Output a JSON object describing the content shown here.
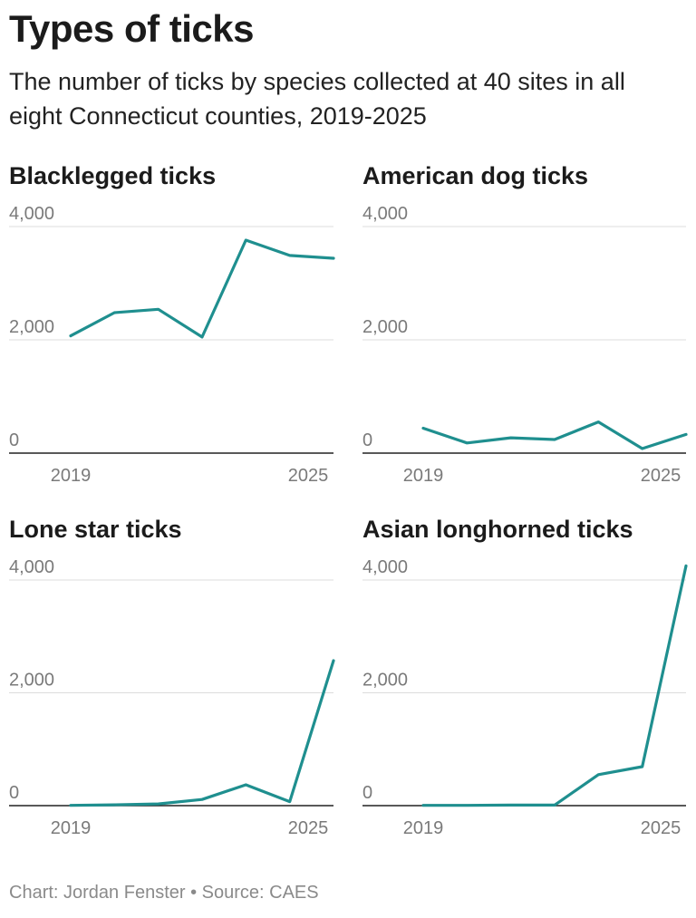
{
  "header": {
    "title": "Types of ticks",
    "subtitle": "The number of ticks by species collected at 40 sites in all eight Connecticut counties, 2019-2025"
  },
  "footer": {
    "credit": "Chart: Jordan Fenster • Source: CAES"
  },
  "colors": {
    "series": "#1f8f8f"
  },
  "chart_data": [
    {
      "type": "line",
      "title": "Blacklegged ticks",
      "x": [
        2019,
        2020,
        2021,
        2022,
        2023,
        2024,
        2025
      ],
      "values": [
        2070,
        2480,
        2540,
        2050,
        3760,
        3490,
        3440
      ],
      "ylim": [
        0,
        4000
      ],
      "yticks": [
        "4,000",
        "2,000",
        "0"
      ],
      "xticks": [
        "2019",
        "2025"
      ],
      "grid": true
    },
    {
      "type": "line",
      "title": "American dog ticks",
      "x": [
        2019,
        2020,
        2021,
        2022,
        2023,
        2024,
        2025
      ],
      "values": [
        440,
        180,
        270,
        240,
        550,
        80,
        330
      ],
      "ylim": [
        0,
        4000
      ],
      "yticks": [
        "4,000",
        "2,000",
        "0"
      ],
      "xticks": [
        "2019",
        "2025"
      ],
      "grid": true
    },
    {
      "type": "line",
      "title": "Lone star ticks",
      "x": [
        2019,
        2020,
        2021,
        2022,
        2023,
        2024,
        2025
      ],
      "values": [
        5,
        15,
        30,
        110,
        370,
        70,
        2570
      ],
      "ylim": [
        0,
        4000
      ],
      "yticks": [
        "4,000",
        "2,000",
        "0"
      ],
      "xticks": [
        "2019",
        "2025"
      ],
      "grid": true
    },
    {
      "type": "line",
      "title": "Asian longhorned ticks",
      "x": [
        2019,
        2020,
        2021,
        2022,
        2023,
        2024,
        2025
      ],
      "values": [
        5,
        5,
        10,
        10,
        550,
        690,
        4250
      ],
      "ylim": [
        0,
        4000
      ],
      "yticks": [
        "4,000",
        "2,000",
        "0"
      ],
      "xticks": [
        "2019",
        "2025"
      ],
      "grid": true
    }
  ]
}
